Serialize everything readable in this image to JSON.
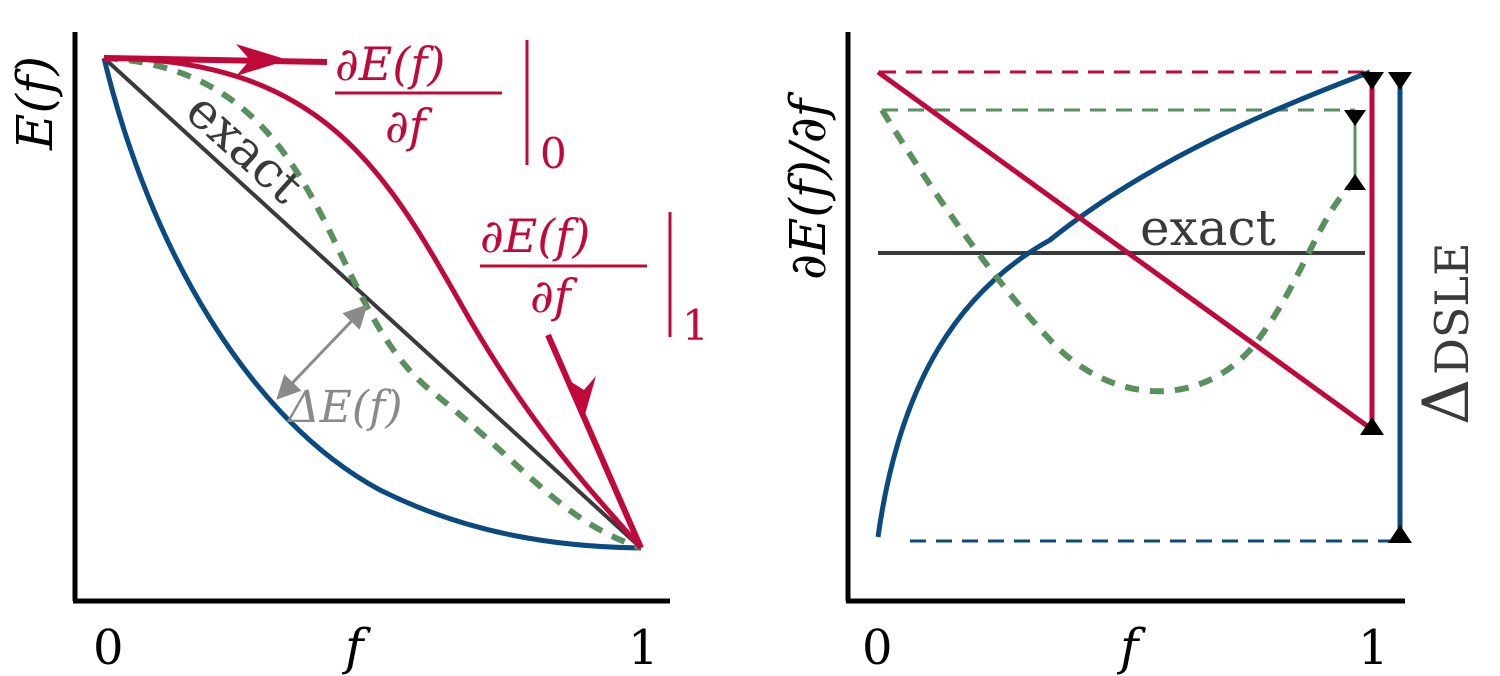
{
  "colors": {
    "axis": "#000000",
    "exact": "#3a3a3a",
    "crimson": "#c0093a",
    "blue": "#0a4a80",
    "green": "#5a8f5e",
    "gray_annot": "#8a8a8a"
  },
  "left_panel": {
    "ylabel": "E(f)",
    "xlabel": "f",
    "tick_0": "0",
    "tick_1": "1",
    "exact_label": "exact",
    "delta_label": "ΔE(f)",
    "deriv0_numerator": "∂E(f)",
    "deriv0_denominator": "∂f",
    "deriv0_subscript": "0",
    "deriv1_numerator": "∂E(f)",
    "deriv1_denominator": "∂f",
    "deriv1_subscript": "1"
  },
  "right_panel": {
    "ylabel": "∂E(f)/∂f",
    "xlabel": "f",
    "tick_0": "0",
    "tick_1": "1",
    "exact_label": "exact",
    "dsle_label": "Δ",
    "dsle_subscript": "DSLE"
  }
}
